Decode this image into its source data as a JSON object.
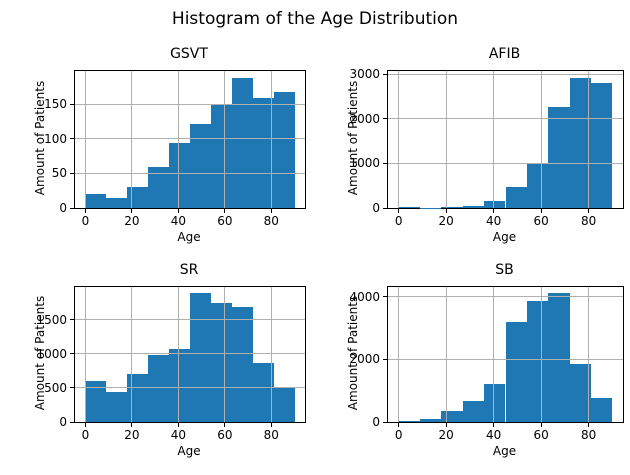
{
  "figure": {
    "title": "Histogram of the Age Distribution"
  },
  "colors": {
    "bar": "#1f77b4",
    "grid": "#b0b0b0",
    "spine": "#000000",
    "background": "#ffffff"
  },
  "chart_data": [
    {
      "type": "bar",
      "subtype": "histogram",
      "title": "GSVT",
      "xlabel": "Age",
      "ylabel": "Amount of Patients",
      "bin_edges": [
        0,
        9,
        18,
        27,
        36,
        45,
        54,
        63,
        72,
        81,
        90
      ],
      "values": [
        21,
        15,
        31,
        60,
        94,
        121,
        149,
        189,
        160,
        168
      ],
      "xticks": [
        0,
        20,
        40,
        60,
        80
      ],
      "yticks": [
        0,
        50,
        100,
        150
      ],
      "xlim": [
        -4.5,
        94.5
      ],
      "ylim": [
        0,
        198.5
      ],
      "grid": true,
      "legend": false
    },
    {
      "type": "bar",
      "subtype": "histogram",
      "title": "AFIB",
      "xlabel": "Age",
      "ylabel": "Amount of Patients",
      "bin_edges": [
        0,
        9,
        18,
        27,
        36,
        45,
        54,
        63,
        72,
        81,
        90
      ],
      "values": [
        30,
        10,
        25,
        55,
        160,
        480,
        1010,
        2260,
        2930,
        2800
      ],
      "xticks": [
        0,
        20,
        40,
        60,
        80
      ],
      "yticks": [
        0,
        1000,
        2000,
        3000
      ],
      "xlim": [
        -4.5,
        94.5
      ],
      "ylim": [
        0,
        3077
      ],
      "grid": true,
      "legend": false
    },
    {
      "type": "bar",
      "subtype": "histogram",
      "title": "SR",
      "xlabel": "Age",
      "ylabel": "Amount of Patients",
      "bin_edges": [
        0,
        9,
        18,
        27,
        36,
        45,
        54,
        63,
        72,
        81,
        90
      ],
      "values": [
        600,
        435,
        710,
        975,
        1065,
        1885,
        1740,
        1690,
        870,
        505
      ],
      "xticks": [
        0,
        20,
        40,
        60,
        80
      ],
      "yticks": [
        0,
        500,
        1000,
        1500
      ],
      "xlim": [
        -4.5,
        94.5
      ],
      "ylim": [
        0,
        1979
      ],
      "grid": true,
      "legend": false
    },
    {
      "type": "bar",
      "subtype": "histogram",
      "title": "SB",
      "xlabel": "Age",
      "ylabel": "Amount of Patients",
      "bin_edges": [
        0,
        9,
        18,
        27,
        36,
        45,
        54,
        63,
        72,
        81,
        90
      ],
      "values": [
        40,
        85,
        340,
        660,
        1200,
        3200,
        3850,
        4100,
        1850,
        780
      ],
      "xticks": [
        0,
        20,
        40,
        60,
        80
      ],
      "yticks": [
        0,
        2000,
        4000
      ],
      "xlim": [
        -4.5,
        94.5
      ],
      "ylim": [
        0,
        4305
      ],
      "grid": true,
      "legend": false
    }
  ]
}
